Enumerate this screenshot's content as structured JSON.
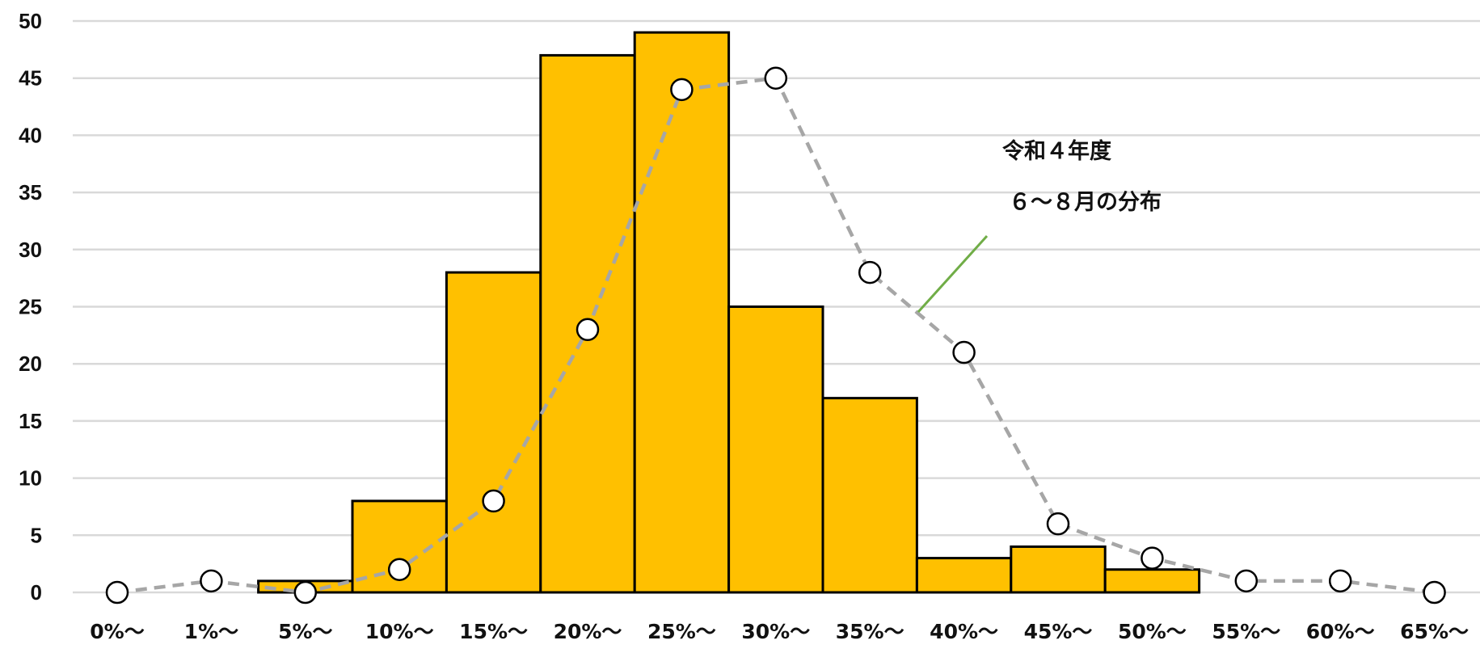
{
  "chart_data": {
    "type": "bar",
    "title": "",
    "xlabel": "",
    "ylabel": "",
    "ylim": [
      0,
      50
    ],
    "yticks": [
      0,
      5,
      10,
      15,
      20,
      25,
      30,
      35,
      40,
      45,
      50
    ],
    "grid": true,
    "categories": [
      "0%〜",
      "1%〜",
      "5%〜",
      "10%〜",
      "15%〜",
      "20%〜",
      "25%〜",
      "30%〜",
      "35%〜",
      "40%〜",
      "45%〜",
      "50%〜",
      "55%〜",
      "60%〜",
      "65%〜"
    ],
    "bars": {
      "color": "#FFC000",
      "values": [
        0,
        0,
        1,
        8,
        28,
        47,
        49,
        25,
        17,
        3,
        4,
        2,
        0,
        0,
        0
      ]
    },
    "line": {
      "color": "#A6A6A6",
      "style": "dashed",
      "marker": "open-circle",
      "values": [
        0,
        1,
        0,
        2,
        8,
        23,
        44,
        45,
        28,
        21,
        6,
        3,
        1,
        1,
        0
      ]
    },
    "annotation": {
      "lines": [
        "令和４年度",
        "６〜８月の分布"
      ],
      "leader_color": "#70AD47"
    }
  }
}
